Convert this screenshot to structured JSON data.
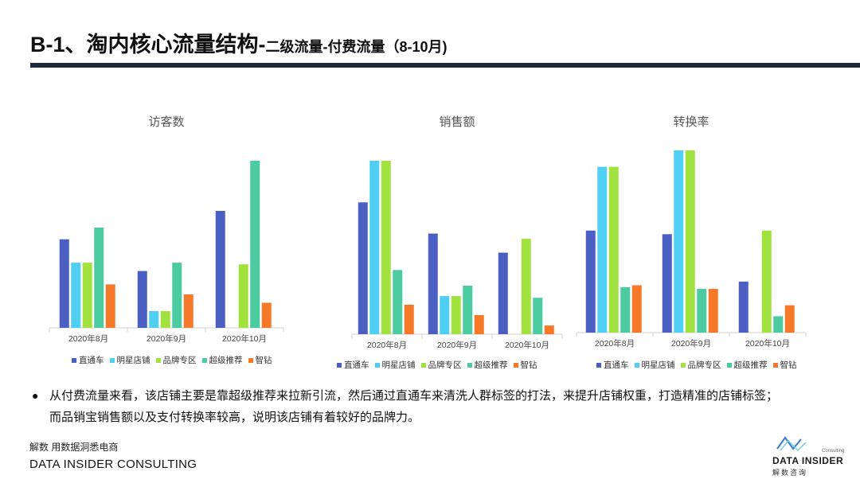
{
  "header": {
    "title_main": "B-1、淘内核心流量结构-",
    "title_sub": "二级流量-付费流量（8-10月)"
  },
  "series_colors": {
    "直通车": "#4a5fc1",
    "明星店铺": "#4fd0f2",
    "品牌专区": "#a2e23f",
    "超级推荐": "#4dcba0",
    "智钻": "#f6792a"
  },
  "chart_data": [
    {
      "type": "bar",
      "title": "访客数",
      "categories": [
        "2020年8月",
        "2020年9月",
        "2020年10月"
      ],
      "ylim": [
        0,
        100
      ],
      "grid": false,
      "legend": "bottom",
      "series": [
        {
          "name": "直通车",
          "values": [
            53,
            34,
            70
          ]
        },
        {
          "name": "明星店铺",
          "values": [
            39,
            10,
            0
          ]
        },
        {
          "name": "品牌专区",
          "values": [
            39,
            10,
            38
          ]
        },
        {
          "name": "超级推荐",
          "values": [
            60,
            39,
            100
          ]
        },
        {
          "name": "智钻",
          "values": [
            26,
            20,
            15
          ]
        }
      ]
    },
    {
      "type": "bar",
      "title": "销售额",
      "categories": [
        "2020年8月",
        "2020年9月",
        "2020年10月"
      ],
      "ylim": [
        0,
        100
      ],
      "grid": false,
      "legend": "bottom",
      "series": [
        {
          "name": "直通车",
          "values": [
            76,
            58,
            47
          ]
        },
        {
          "name": "明星店铺",
          "values": [
            100,
            22,
            0
          ]
        },
        {
          "name": "品牌专区",
          "values": [
            100,
            22,
            55
          ]
        },
        {
          "name": "超级推荐",
          "values": [
            37,
            28,
            21
          ]
        },
        {
          "name": "智钻",
          "values": [
            17,
            11,
            5
          ]
        }
      ]
    },
    {
      "type": "bar",
      "title": "转换率",
      "categories": [
        "2020年8月",
        "2020年9月",
        "2020年10月"
      ],
      "ylim": [
        0,
        100
      ],
      "grid": false,
      "legend": "bottom",
      "series": [
        {
          "name": "直通车",
          "values": [
            56,
            54,
            28
          ]
        },
        {
          "name": "明星店铺",
          "values": [
            91,
            100,
            0
          ]
        },
        {
          "name": "品牌专区",
          "values": [
            91,
            100,
            56
          ]
        },
        {
          "name": "超级推荐",
          "values": [
            25,
            24,
            9
          ]
        },
        {
          "name": "智钻",
          "values": [
            26,
            24,
            15
          ]
        }
      ]
    }
  ],
  "insight": {
    "bullet": "●",
    "line1": "从付费流量来看，该店铺主要是靠超级推荐来拉新引流，然后通过直通车来清洗人群标签的打法，来提升店铺权重，打造精准的店铺标签；",
    "line2": "而品销宝销售额以及支付转换率较高，说明该店铺有着较好的品牌力。"
  },
  "footer": {
    "tagline_cn": "解数 用数据洞悉电商",
    "company_en": "DATA INSIDER CONSULTING"
  },
  "logo": {
    "tiny": "Consulting",
    "name": "DATA INSIDER",
    "cn": "解数咨询"
  }
}
